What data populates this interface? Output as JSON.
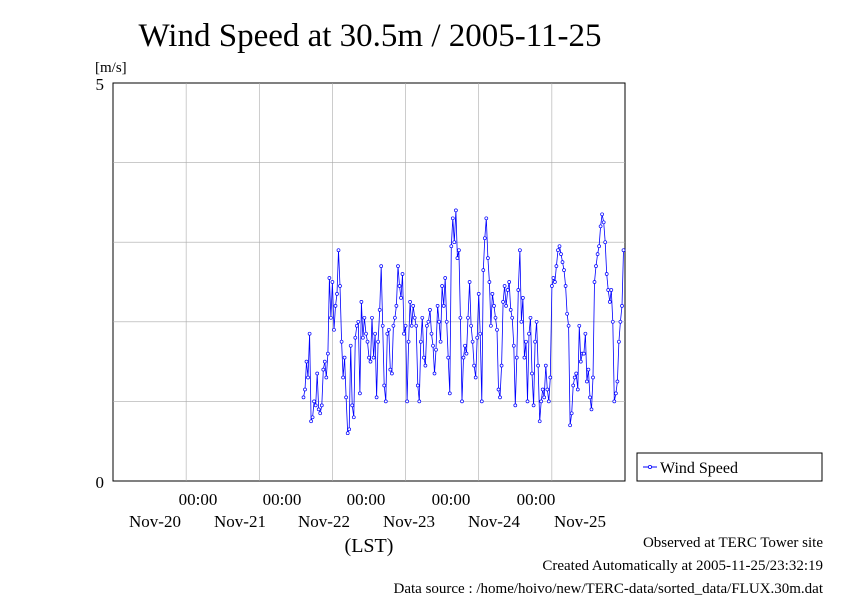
{
  "chart_data": {
    "type": "line",
    "title": "Wind Speed at 30.5m / 2005-11-25",
    "ylabel": "[m/s]",
    "xlabel": "(LST)",
    "ylim": [
      0,
      5
    ],
    "y_ticks": [
      "0",
      "5"
    ],
    "x_time_labels": [
      "00:00",
      "00:00",
      "00:00",
      "00:00",
      "00:00"
    ],
    "x_date_labels": [
      "Nov-20",
      "Nov-21",
      "Nov-22",
      "Nov-23",
      "Nov-24",
      "Nov-25"
    ],
    "x_range": [
      "2005-11-19 00:00",
      "2005-11-26 00:00"
    ],
    "sample_interval_minutes": 30,
    "grid": true,
    "legend_position": "right",
    "color": "#0000ff",
    "series": [
      {
        "name": "Wind Speed",
        "values": [
          1.05,
          1.15,
          1.5,
          1.3,
          1.85,
          0.75,
          0.8,
          1.0,
          0.95,
          1.35,
          0.9,
          0.85,
          0.95,
          1.4,
          1.5,
          1.3,
          1.6,
          2.55,
          2.05,
          2.5,
          1.9,
          2.2,
          2.35,
          2.9,
          2.45,
          1.75,
          1.3,
          1.55,
          1.05,
          0.6,
          0.65,
          1.7,
          0.95,
          0.8,
          1.8,
          1.95,
          2.0,
          1.1,
          2.25,
          1.8,
          2.05,
          1.85,
          1.75,
          1.55,
          1.5,
          2.05,
          1.55,
          1.85,
          1.05,
          1.75,
          2.15,
          2.7,
          1.95,
          1.2,
          1.0,
          1.85,
          1.9,
          1.4,
          1.35,
          1.95,
          2.05,
          2.2,
          2.7,
          2.45,
          2.3,
          2.6,
          1.85,
          1.95,
          1.0,
          1.75,
          2.25,
          1.95,
          2.2,
          2.05,
          1.95,
          1.2,
          1.0,
          1.75,
          2.05,
          1.55,
          1.45,
          1.95,
          2.0,
          2.15,
          1.85,
          1.7,
          1.35,
          1.65,
          2.2,
          2.0,
          1.75,
          2.45,
          2.2,
          2.55,
          2.0,
          1.55,
          1.1,
          2.95,
          3.3,
          3.0,
          3.4,
          2.8,
          2.9,
          2.05,
          1.0,
          1.55,
          1.7,
          1.6,
          2.05,
          2.5,
          1.95,
          1.75,
          1.45,
          1.3,
          1.8,
          2.35,
          1.85,
          1.0,
          2.65,
          3.05,
          3.3,
          2.8,
          2.5,
          1.95,
          2.35,
          2.2,
          2.05,
          1.9,
          1.15,
          1.05,
          1.45,
          2.25,
          2.45,
          2.2,
          2.4,
          2.5,
          2.15,
          2.05,
          1.7,
          0.95,
          1.55,
          2.4,
          2.9,
          2.0,
          2.3,
          1.55,
          1.75,
          1.0,
          1.85,
          2.05,
          1.35,
          0.95,
          1.75,
          2.0,
          1.45,
          0.75,
          1.0,
          1.15,
          1.05,
          1.45,
          1.15,
          1.0,
          1.3,
          2.45,
          2.55,
          2.5,
          2.7,
          2.9,
          2.95,
          2.85,
          2.75,
          2.65,
          2.45,
          2.1,
          1.95,
          0.7,
          0.85,
          1.2,
          1.3,
          1.35,
          1.15,
          1.95,
          1.5,
          1.6,
          1.6,
          1.85,
          1.25,
          1.4,
          1.05,
          0.9,
          1.3,
          2.5,
          2.7,
          2.85,
          2.95,
          3.2,
          3.35,
          3.25,
          3.0,
          2.6,
          2.4,
          2.25,
          2.4,
          2.0,
          1.0,
          1.1,
          1.25,
          1.75,
          2.0,
          2.2,
          2.9
        ]
      }
    ]
  },
  "footer": {
    "observed": "Observed at TERC Tower site",
    "created": "Created Automatically at 2005-11-25/23:32:19",
    "source": "Data source : /home/hoivo/new/TERC-data/sorted_data/FLUX.30m.dat"
  }
}
